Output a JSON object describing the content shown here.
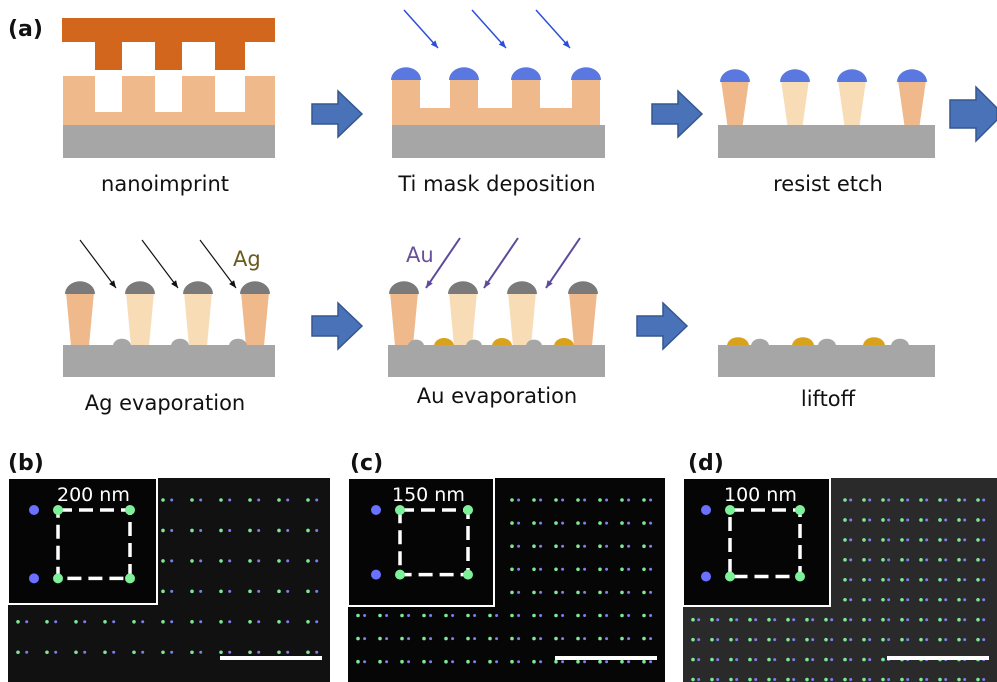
{
  "panel_a": {
    "label": "(a)",
    "steps": [
      "nanoimprint",
      "Ti mask deposition",
      "resist etch",
      "Ag evaporation",
      "Au evaporation",
      "liftoff"
    ],
    "beam_labels": [
      "Ag",
      "Au"
    ]
  },
  "panels": [
    {
      "label": "(b)",
      "inset_label": "200 nm"
    },
    {
      "label": "(c)",
      "inset_label": "150 nm"
    },
    {
      "label": "(d)",
      "inset_label": "100 nm"
    }
  ]
}
